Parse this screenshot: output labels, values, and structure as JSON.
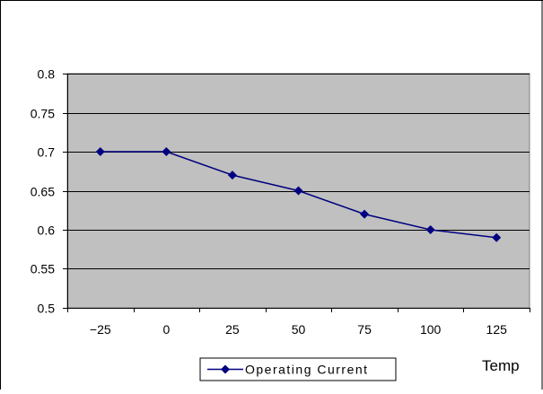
{
  "chart_data": {
    "type": "line",
    "categories": [
      "-25",
      "0",
      "25",
      "50",
      "75",
      "100",
      "125"
    ],
    "series": [
      {
        "name": "Operating Current",
        "values": [
          0.7,
          0.7,
          0.67,
          0.65,
          0.62,
          0.6,
          0.59
        ]
      }
    ],
    "y_ticks": [
      "0.5",
      "0.55",
      "0.6",
      "0.65",
      "0.7",
      "0.75",
      "0.8"
    ],
    "ylim": [
      0.5,
      0.8
    ],
    "xlabel": "Temp",
    "grid": true,
    "legend": "bottom-center",
    "colors": {
      "series": "#000080",
      "plot_background": "#c0c0c0",
      "gridline": "#000000"
    }
  }
}
